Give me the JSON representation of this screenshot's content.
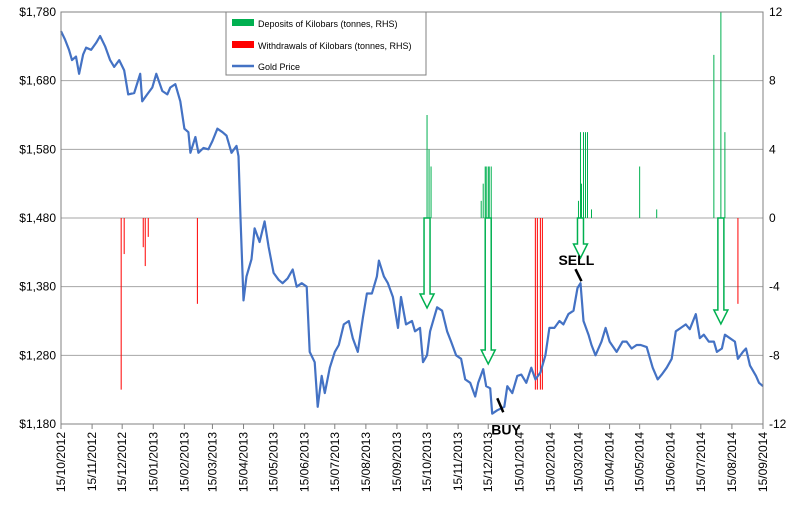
{
  "chart_data": {
    "type": "line",
    "legend": {
      "position": "top-center",
      "entries": [
        {
          "label": "Deposits of Kilobars (tonnes, RHS)",
          "color": "#00b050"
        },
        {
          "label": "Withdrawals of Kilobars (tonnes, RHS)",
          "color": "#ff0000"
        },
        {
          "label": "Gold Price",
          "color": "#4472c4"
        }
      ]
    },
    "left_axis": {
      "ylim": [
        1180,
        1780
      ],
      "ticks": [
        1180,
        1280,
        1380,
        1480,
        1580,
        1680,
        1780
      ],
      "tick_labels": [
        "$1,180",
        "$1,280",
        "$1,380",
        "$1,480",
        "$1,580",
        "$1,680",
        "$1,780"
      ]
    },
    "right_axis": {
      "ylim": [
        -12,
        12
      ],
      "ticks": [
        -12,
        -8,
        -4,
        0,
        4,
        8,
        12
      ],
      "tick_labels": [
        "-12",
        "-8",
        "-4",
        "0",
        "4",
        "8",
        "12"
      ]
    },
    "x_axis": {
      "start": "2012-10-15",
      "end": "2014-09-15",
      "tick_labels": [
        "15/10/2012",
        "15/11/2012",
        "15/12/2012",
        "15/01/2013",
        "15/02/2013",
        "15/03/2013",
        "15/04/2013",
        "15/05/2013",
        "15/06/2013",
        "15/07/2013",
        "15/08/2013",
        "15/09/2013",
        "15/10/2013",
        "15/11/2013",
        "15/12/2013",
        "15/01/2014",
        "15/02/2014",
        "15/03/2014",
        "15/04/2014",
        "15/05/2014",
        "15/06/2014",
        "15/07/2014",
        "15/08/2014",
        "15/09/2014"
      ]
    },
    "grid": {
      "horizontal": true,
      "vertical": false
    },
    "gold_price": {
      "name": "Gold Price",
      "color": "#4472c4",
      "points": [
        [
          "2012-10-15",
          1752
        ],
        [
          "2012-10-19",
          1740
        ],
        [
          "2012-10-23",
          1725
        ],
        [
          "2012-10-26",
          1710
        ],
        [
          "2012-10-30",
          1715
        ],
        [
          "2012-11-02",
          1690
        ],
        [
          "2012-11-06",
          1718
        ],
        [
          "2012-11-09",
          1728
        ],
        [
          "2012-11-14",
          1725
        ],
        [
          "2012-11-19",
          1735
        ],
        [
          "2012-11-23",
          1745
        ],
        [
          "2012-11-28",
          1730
        ],
        [
          "2012-12-03",
          1710
        ],
        [
          "2012-12-07",
          1700
        ],
        [
          "2012-12-12",
          1710
        ],
        [
          "2012-12-17",
          1695
        ],
        [
          "2012-12-21",
          1660
        ],
        [
          "2012-12-27",
          1662
        ],
        [
          "2013-01-02",
          1690
        ],
        [
          "2013-01-04",
          1650
        ],
        [
          "2013-01-09",
          1660
        ],
        [
          "2013-01-14",
          1670
        ],
        [
          "2013-01-18",
          1690
        ],
        [
          "2013-01-24",
          1665
        ],
        [
          "2013-01-29",
          1660
        ],
        [
          "2013-02-01",
          1670
        ],
        [
          "2013-02-06",
          1675
        ],
        [
          "2013-02-11",
          1650
        ],
        [
          "2013-02-15",
          1610
        ],
        [
          "2013-02-19",
          1605
        ],
        [
          "2013-02-21",
          1575
        ],
        [
          "2013-02-26",
          1598
        ],
        [
          "2013-03-01",
          1575
        ],
        [
          "2013-03-06",
          1582
        ],
        [
          "2013-03-11",
          1580
        ],
        [
          "2013-03-15",
          1592
        ],
        [
          "2013-03-20",
          1610
        ],
        [
          "2013-03-25",
          1605
        ],
        [
          "2013-03-29",
          1600
        ],
        [
          "2013-04-03",
          1575
        ],
        [
          "2013-04-08",
          1585
        ],
        [
          "2013-04-10",
          1570
        ],
        [
          "2013-04-12",
          1480
        ],
        [
          "2013-04-15",
          1360
        ],
        [
          "2013-04-18",
          1395
        ],
        [
          "2013-04-23",
          1420
        ],
        [
          "2013-04-26",
          1465
        ],
        [
          "2013-05-01",
          1445
        ],
        [
          "2013-05-06",
          1475
        ],
        [
          "2013-05-10",
          1438
        ],
        [
          "2013-05-15",
          1400
        ],
        [
          "2013-05-20",
          1390
        ],
        [
          "2013-05-24",
          1385
        ],
        [
          "2013-05-29",
          1392
        ],
        [
          "2013-06-03",
          1405
        ],
        [
          "2013-06-07",
          1380
        ],
        [
          "2013-06-12",
          1385
        ],
        [
          "2013-06-17",
          1380
        ],
        [
          "2013-06-20",
          1285
        ],
        [
          "2013-06-25",
          1270
        ],
        [
          "2013-06-28",
          1205
        ],
        [
          "2013-07-02",
          1250
        ],
        [
          "2013-07-05",
          1225
        ],
        [
          "2013-07-10",
          1262
        ],
        [
          "2013-07-15",
          1285
        ],
        [
          "2013-07-19",
          1295
        ],
        [
          "2013-07-24",
          1325
        ],
        [
          "2013-07-29",
          1330
        ],
        [
          "2013-08-02",
          1305
        ],
        [
          "2013-08-07",
          1285
        ],
        [
          "2013-08-12",
          1335
        ],
        [
          "2013-08-16",
          1370
        ],
        [
          "2013-08-21",
          1370
        ],
        [
          "2013-08-26",
          1395
        ],
        [
          "2013-08-28",
          1418
        ],
        [
          "2013-09-02",
          1395
        ],
        [
          "2013-09-06",
          1385
        ],
        [
          "2013-09-11",
          1365
        ],
        [
          "2013-09-16",
          1320
        ],
        [
          "2013-09-19",
          1365
        ],
        [
          "2013-09-24",
          1325
        ],
        [
          "2013-09-30",
          1330
        ],
        [
          "2013-10-03",
          1315
        ],
        [
          "2013-10-08",
          1320
        ],
        [
          "2013-10-11",
          1270
        ],
        [
          "2013-10-15",
          1280
        ],
        [
          "2013-10-18",
          1315
        ],
        [
          "2013-10-22",
          1335
        ],
        [
          "2013-10-25",
          1350
        ],
        [
          "2013-10-30",
          1345
        ],
        [
          "2013-11-04",
          1315
        ],
        [
          "2013-11-08",
          1300
        ],
        [
          "2013-11-13",
          1280
        ],
        [
          "2013-11-18",
          1275
        ],
        [
          "2013-11-22",
          1245
        ],
        [
          "2013-11-27",
          1240
        ],
        [
          "2013-12-02",
          1220
        ],
        [
          "2013-12-05",
          1240
        ],
        [
          "2013-12-10",
          1260
        ],
        [
          "2013-12-13",
          1235
        ],
        [
          "2013-12-17",
          1232
        ],
        [
          "2013-12-19",
          1195
        ],
        [
          "2013-12-24",
          1200
        ],
        [
          "2013-12-31",
          1205
        ],
        [
          "2014-01-03",
          1235
        ],
        [
          "2014-01-08",
          1225
        ],
        [
          "2014-01-13",
          1250
        ],
        [
          "2014-01-17",
          1252
        ],
        [
          "2014-01-22",
          1240
        ],
        [
          "2014-01-27",
          1262
        ],
        [
          "2014-01-31",
          1245
        ],
        [
          "2014-02-05",
          1255
        ],
        [
          "2014-02-10",
          1280
        ],
        [
          "2014-02-14",
          1320
        ],
        [
          "2014-02-19",
          1320
        ],
        [
          "2014-02-24",
          1330
        ],
        [
          "2014-02-28",
          1325
        ],
        [
          "2014-03-05",
          1340
        ],
        [
          "2014-03-10",
          1345
        ],
        [
          "2014-03-14",
          1378
        ],
        [
          "2014-03-17",
          1385
        ],
        [
          "2014-03-20",
          1330
        ],
        [
          "2014-03-25",
          1310
        ],
        [
          "2014-03-28",
          1295
        ],
        [
          "2014-04-01",
          1280
        ],
        [
          "2014-04-07",
          1300
        ],
        [
          "2014-04-11",
          1320
        ],
        [
          "2014-04-15",
          1300
        ],
        [
          "2014-04-22",
          1285
        ],
        [
          "2014-04-28",
          1300
        ],
        [
          "2014-05-02",
          1300
        ],
        [
          "2014-05-07",
          1290
        ],
        [
          "2014-05-12",
          1295
        ],
        [
          "2014-05-16",
          1295
        ],
        [
          "2014-05-22",
          1292
        ],
        [
          "2014-05-28",
          1262
        ],
        [
          "2014-06-02",
          1245
        ],
        [
          "2014-06-06",
          1252
        ],
        [
          "2014-06-11",
          1262
        ],
        [
          "2014-06-16",
          1275
        ],
        [
          "2014-06-20",
          1315
        ],
        [
          "2014-06-25",
          1320
        ],
        [
          "2014-06-30",
          1325
        ],
        [
          "2014-07-04",
          1318
        ],
        [
          "2014-07-10",
          1340
        ],
        [
          "2014-07-14",
          1305
        ],
        [
          "2014-07-18",
          1310
        ],
        [
          "2014-07-23",
          1300
        ],
        [
          "2014-07-28",
          1300
        ],
        [
          "2014-07-31",
          1285
        ],
        [
          "2014-08-05",
          1290
        ],
        [
          "2014-08-08",
          1310
        ],
        [
          "2014-08-13",
          1305
        ],
        [
          "2014-08-18",
          1300
        ],
        [
          "2014-08-21",
          1275
        ],
        [
          "2014-08-26",
          1285
        ],
        [
          "2014-08-29",
          1290
        ],
        [
          "2014-09-02",
          1265
        ],
        [
          "2014-09-08",
          1250
        ],
        [
          "2014-09-11",
          1240
        ],
        [
          "2014-09-15",
          1235
        ]
      ]
    },
    "deposits": {
      "name": "Deposits of Kilobars (tonnes, RHS)",
      "color": "#00b050",
      "points": [
        [
          "2013-10-15",
          6
        ],
        [
          "2013-10-17",
          4
        ],
        [
          "2013-10-19",
          3
        ],
        [
          "2013-12-08",
          1
        ],
        [
          "2013-12-10",
          2
        ],
        [
          "2013-12-12",
          3
        ],
        [
          "2013-12-13",
          3
        ],
        [
          "2013-12-15",
          3
        ],
        [
          "2013-12-16",
          3
        ],
        [
          "2013-12-18",
          3
        ],
        [
          "2014-03-15",
          1
        ],
        [
          "2014-03-17",
          5
        ],
        [
          "2014-03-18",
          2
        ],
        [
          "2014-03-20",
          5
        ],
        [
          "2014-03-22",
          5
        ],
        [
          "2014-03-24",
          5
        ],
        [
          "2014-03-28",
          0.5
        ],
        [
          "2014-05-15",
          3
        ],
        [
          "2014-06-01",
          0.5
        ],
        [
          "2014-07-28",
          9.5
        ],
        [
          "2014-08-04",
          12
        ],
        [
          "2014-08-08",
          5
        ]
      ]
    },
    "withdrawals": {
      "name": "Withdrawals of Kilobars (tonnes, RHS)",
      "color": "#ff0000",
      "points": [
        [
          "2012-12-14",
          -10
        ],
        [
          "2012-12-17",
          -2.1
        ],
        [
          "2013-01-05",
          -1.7
        ],
        [
          "2013-01-07",
          -2.8
        ],
        [
          "2013-01-10",
          -1.1
        ],
        [
          "2013-02-28",
          -5
        ],
        [
          "2014-01-31",
          -10
        ],
        [
          "2014-02-02",
          -10
        ],
        [
          "2014-02-05",
          -10
        ],
        [
          "2014-02-07",
          -10
        ],
        [
          "2014-08-21",
          -5
        ]
      ]
    },
    "arrows": [
      "2013-10-15",
      "2013-12-15",
      "2014-03-17",
      "2014-08-04"
    ],
    "annotations": [
      {
        "text": "SELL",
        "date": "2014-03-15",
        "value": 1385
      },
      {
        "text": "BUY",
        "date": "2014-01-03",
        "value": 1232
      }
    ]
  }
}
